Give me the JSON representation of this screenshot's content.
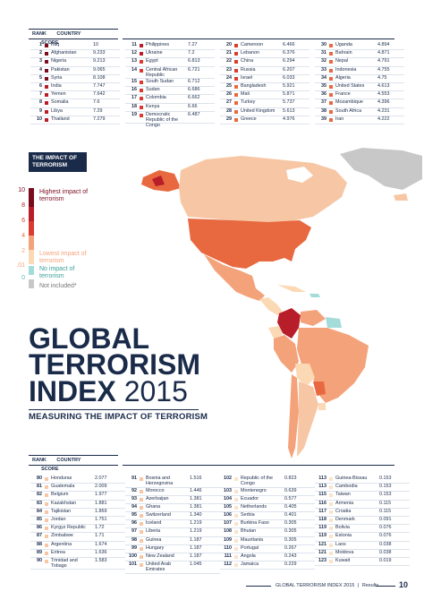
{
  "top_header": {
    "rank": "RANK",
    "country": "COUNTRY",
    "score": "SCORE"
  },
  "top_col1": [
    {
      "rank": "1",
      "country": "Iraq",
      "score": "10",
      "color": "#7a0c1e"
    },
    {
      "rank": "2",
      "country": "Afghanistan",
      "score": "9.233",
      "color": "#7a0c1e"
    },
    {
      "rank": "3",
      "country": "Nigeria",
      "score": "9.213",
      "color": "#7a0c1e"
    },
    {
      "rank": "4",
      "country": "Pakistan",
      "score": "9.065",
      "color": "#7a0c1e"
    },
    {
      "rank": "5",
      "country": "Syria",
      "score": "8.108",
      "color": "#7a0c1e"
    },
    {
      "rank": "6",
      "country": "India",
      "score": "7.747",
      "color": "#b81d2a"
    },
    {
      "rank": "7",
      "country": "Yemen",
      "score": "7.642",
      "color": "#b81d2a"
    },
    {
      "rank": "8",
      "country": "Somalia",
      "score": "7.6",
      "color": "#b81d2a"
    },
    {
      "rank": "9",
      "country": "Libya",
      "score": "7.29",
      "color": "#b81d2a"
    },
    {
      "rank": "10",
      "country": "Thailand",
      "score": "7.279",
      "color": "#b81d2a"
    }
  ],
  "top_col2": [
    {
      "rank": "11",
      "country": "Philippines",
      "score": "7.27",
      "color": "#b81d2a"
    },
    {
      "rank": "12",
      "country": "Ukraine",
      "score": "7.2",
      "color": "#b81d2a"
    },
    {
      "rank": "13",
      "country": "Egypt",
      "score": "6.813",
      "color": "#d93b30"
    },
    {
      "rank": "14",
      "country": "Central African Republic",
      "score": "6.721",
      "color": "#d93b30",
      "tall": true
    },
    {
      "rank": "15",
      "country": "South Sudan",
      "score": "6.712",
      "color": "#d93b30"
    },
    {
      "rank": "16",
      "country": "Sudan",
      "score": "6.686",
      "color": "#d93b30"
    },
    {
      "rank": "17",
      "country": "Colombia",
      "score": "6.662",
      "color": "#d93b30"
    },
    {
      "rank": "18",
      "country": "Kenya",
      "score": "6.66",
      "color": "#d93b30"
    },
    {
      "rank": "19",
      "country": "Democratic Republic of the Congo",
      "score": "6.487",
      "color": "#d93b30",
      "tall": true
    }
  ],
  "top_col3": [
    {
      "rank": "20",
      "country": "Cameroon",
      "score": "6.466",
      "color": "#d93b30"
    },
    {
      "rank": "21",
      "country": "Lebanon",
      "score": "6.376",
      "color": "#d93b30"
    },
    {
      "rank": "22",
      "country": "China",
      "score": "6.294",
      "color": "#d93b30"
    },
    {
      "rank": "23",
      "country": "Russia",
      "score": "6.207",
      "color": "#d93b30"
    },
    {
      "rank": "24",
      "country": "Israel",
      "score": "6.033",
      "color": "#d93b30"
    },
    {
      "rank": "25",
      "country": "Bangladesh",
      "score": "5.921",
      "color": "#e8683f"
    },
    {
      "rank": "26",
      "country": "Mali",
      "score": "5.871",
      "color": "#e8683f"
    },
    {
      "rank": "27",
      "country": "Turkey",
      "score": "5.737",
      "color": "#e8683f"
    },
    {
      "rank": "28",
      "country": "United Kingdom",
      "score": "5.613",
      "color": "#e8683f"
    },
    {
      "rank": "29",
      "country": "Greece",
      "score": "4.976",
      "color": "#e8683f"
    }
  ],
  "top_col4": [
    {
      "rank": "30",
      "country": "Uganda",
      "score": "4.894",
      "color": "#e8683f"
    },
    {
      "rank": "31",
      "country": "Bahrain",
      "score": "4.871",
      "color": "#e8683f"
    },
    {
      "rank": "32",
      "country": "Nepal",
      "score": "4.791",
      "color": "#e8683f"
    },
    {
      "rank": "33",
      "country": "Indonesia",
      "score": "4.755",
      "color": "#e8683f"
    },
    {
      "rank": "34",
      "country": "Algeria",
      "score": "4.75",
      "color": "#e8683f"
    },
    {
      "rank": "35",
      "country": "United States",
      "score": "4.613",
      "color": "#e8683f"
    },
    {
      "rank": "36",
      "country": "France",
      "score": "4.553",
      "color": "#e8683f"
    },
    {
      "rank": "37",
      "country": "Mozambique",
      "score": "4.396",
      "color": "#e8683f"
    },
    {
      "rank": "38",
      "country": "South Africa",
      "score": "4.231",
      "color": "#e8683f"
    },
    {
      "rank": "39",
      "country": "Iran",
      "score": "4.222",
      "color": "#e8683f"
    }
  ],
  "legend": {
    "title": "THE IMPACT OF TERRORISM",
    "n10": "10",
    "n8": "8",
    "n6": "6",
    "n4": "4",
    "n2": "2",
    "n01": ".01",
    "n0": "0",
    "high": "Highest impact of terrorism",
    "low": "Lowest impact of terrorism",
    "none": "No impact of terrorism",
    "not_included": "Not included*"
  },
  "title": {
    "line1": "GLOBAL",
    "line2": "TERRORISM",
    "line3a": "INDEX",
    "line3b": "2015",
    "subtitle": "MEASURING THE IMPACT OF TERRORISM"
  },
  "bottom_header": {
    "rank": "RANK",
    "country": "COUNTRY",
    "score": "SCORE"
  },
  "bot_col1": [
    {
      "rank": "80",
      "country": "Honduras",
      "score": "2.077",
      "color": "#f7c7a5"
    },
    {
      "rank": "81",
      "country": "Guatemala",
      "score": "2.009",
      "color": "#f7c7a5"
    },
    {
      "rank": "82",
      "country": "Belgium",
      "score": "1.977",
      "color": "#f7c7a5"
    },
    {
      "rank": "83",
      "country": "Kazakhstan",
      "score": "1.881",
      "color": "#f7c7a5"
    },
    {
      "rank": "84",
      "country": "Tajikistan",
      "score": "1.869",
      "color": "#f7c7a5"
    },
    {
      "rank": "85",
      "country": "Jordan",
      "score": "1.751",
      "color": "#f7c7a5"
    },
    {
      "rank": "86",
      "country": "Kyrgyz Republic",
      "score": "1.72",
      "color": "#f7c7a5"
    },
    {
      "rank": "87",
      "country": "Zimbabwe",
      "score": "1.71",
      "color": "#f7c7a5"
    },
    {
      "rank": "88",
      "country": "Argentina",
      "score": "1.674",
      "color": "#f7c7a5"
    },
    {
      "rank": "89",
      "country": "Eritrea",
      "score": "1.636",
      "color": "#f7c7a5"
    },
    {
      "rank": "90",
      "country": "Trinidad and Tobago",
      "score": "1.583",
      "color": "#f7c7a5",
      "tall": true
    }
  ],
  "bot_col2": [
    {
      "rank": "91",
      "country": "Bosnia and Herzegovina",
      "score": "1.516",
      "color": "#f7c7a5",
      "tall": true
    },
    {
      "rank": "92",
      "country": "Morocco",
      "score": "1.446",
      "color": "#f7c7a5"
    },
    {
      "rank": "93",
      "country": "Azerbaijan",
      "score": "1.381",
      "color": "#f7c7a5"
    },
    {
      "rank": "94",
      "country": "Ghana",
      "score": "1.381",
      "color": "#f7c7a5"
    },
    {
      "rank": "95",
      "country": "Switzerland",
      "score": "1.340",
      "color": "#f7c7a5"
    },
    {
      "rank": "96",
      "country": "Iceland",
      "score": "1.219",
      "color": "#f7c7a5"
    },
    {
      "rank": "97",
      "country": "Liberia",
      "score": "1.219",
      "color": "#f7c7a5"
    },
    {
      "rank": "98",
      "country": "Guinea",
      "score": "1.187",
      "color": "#f7c7a5"
    },
    {
      "rank": "99",
      "country": "Hungary",
      "score": "1.187",
      "color": "#f7c7a5"
    },
    {
      "rank": "100",
      "country": "New Zealand",
      "score": "1.187",
      "color": "#f7c7a5"
    },
    {
      "rank": "101",
      "country": "United Arab Emirates",
      "score": "1.045",
      "color": "#f7c7a5",
      "tall": true
    }
  ],
  "bot_col3": [
    {
      "rank": "102",
      "country": "Republic of the Congo",
      "score": "0.823",
      "color": "#fbe3c8",
      "tall": true
    },
    {
      "rank": "103",
      "country": "Montenegro",
      "score": "0.639",
      "color": "#fbe3c8"
    },
    {
      "rank": "104",
      "country": "Ecuador",
      "score": "0.577",
      "color": "#fbe3c8"
    },
    {
      "rank": "105",
      "country": "Netherlands",
      "score": "0.405",
      "color": "#fbe3c8"
    },
    {
      "rank": "106",
      "country": "Serbia",
      "score": "0.401",
      "color": "#fbe3c8"
    },
    {
      "rank": "107",
      "country": "Burkina Faso",
      "score": "0.305",
      "color": "#fbe3c8"
    },
    {
      "rank": "108",
      "country": "Bhutan",
      "score": "0.305",
      "color": "#fbe3c8"
    },
    {
      "rank": "109",
      "country": "Mauritania",
      "score": "0.305",
      "color": "#fbe3c8"
    },
    {
      "rank": "110",
      "country": "Portugal",
      "score": "0.267",
      "color": "#fbe3c8"
    },
    {
      "rank": "111",
      "country": "Angola",
      "score": "0.243",
      "color": "#fbe3c8"
    },
    {
      "rank": "112",
      "country": "Jamaica",
      "score": "0.229",
      "color": "#fbe3c8"
    }
  ],
  "bot_col4": [
    {
      "rank": "113",
      "country": "Guinea-Bissau",
      "score": "0.153",
      "color": "#fbe3c8"
    },
    {
      "rank": "113",
      "country": "Cambodia",
      "score": "0.153",
      "color": "#fbe3c8"
    },
    {
      "rank": "115",
      "country": "Taiwan",
      "score": "0.153",
      "color": "#fbe3c8"
    },
    {
      "rank": "116",
      "country": "Armenia",
      "score": "0.115",
      "color": "#fbe3c8"
    },
    {
      "rank": "117",
      "country": "Croatia",
      "score": "0.115",
      "color": "#fbe3c8"
    },
    {
      "rank": "118",
      "country": "Denmark",
      "score": "0.091",
      "color": "#fbe3c8"
    },
    {
      "rank": "119",
      "country": "Bolivia",
      "score": "0.076",
      "color": "#fbe3c8"
    },
    {
      "rank": "119",
      "country": "Estonia",
      "score": "0.076",
      "color": "#fbe3c8"
    },
    {
      "rank": "121",
      "country": "Laos",
      "score": "0.038",
      "color": "#fbe3c8"
    },
    {
      "rank": "121",
      "country": "Moldova",
      "score": "0.038",
      "color": "#fbe3c8"
    },
    {
      "rank": "123",
      "country": "Kuwait",
      "score": "0.019",
      "color": "#fbe3c8"
    }
  ],
  "footer": {
    "text": "GLOBAL TERRORISM INDEX 2015",
    "section": "Results",
    "page": "10"
  },
  "colors": {
    "navy": "#1a2b4a",
    "c10": "#7a0c1e",
    "c8": "#b81d2a",
    "c6": "#d93b30",
    "c4": "#e8683f",
    "c2": "#f4a27a",
    "c01": "#fcd9b5",
    "c0": "#a3dcd8",
    "na": "#c8c8c8"
  }
}
